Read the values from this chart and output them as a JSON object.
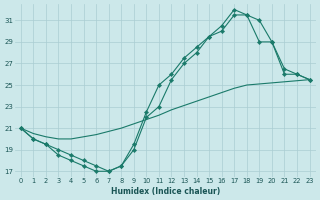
{
  "xlabel": "Humidex (Indice chaleur)",
  "background_color": "#cce8ea",
  "grid_color": "#aacdd2",
  "line_color": "#1a7a6a",
  "xlim": [
    -0.5,
    23.5
  ],
  "ylim": [
    16.5,
    32.5
  ],
  "xticks": [
    0,
    1,
    2,
    3,
    4,
    5,
    6,
    7,
    8,
    9,
    10,
    11,
    12,
    13,
    14,
    15,
    16,
    17,
    18,
    19,
    20,
    21,
    22,
    23
  ],
  "yticks": [
    17,
    19,
    21,
    23,
    25,
    27,
    29,
    31
  ],
  "line1_x": [
    0,
    1,
    2,
    3,
    4,
    5,
    6,
    7,
    8,
    9,
    10,
    11,
    12,
    13,
    14,
    15,
    16,
    17,
    18,
    19,
    20,
    21,
    22,
    23
  ],
  "line1_y": [
    21.0,
    20.0,
    19.5,
    19.0,
    18.5,
    18.0,
    17.5,
    17.0,
    17.5,
    19.5,
    22.5,
    25.0,
    26.0,
    27.5,
    28.5,
    29.5,
    30.5,
    32.0,
    31.5,
    29.0,
    29.0,
    26.0,
    26.0,
    25.5
  ],
  "line2_x": [
    0,
    1,
    2,
    3,
    4,
    5,
    6,
    7,
    8,
    9,
    10,
    11,
    12,
    13,
    14,
    15,
    16,
    17,
    18,
    19,
    20,
    21,
    22,
    23
  ],
  "line2_y": [
    21.0,
    20.0,
    19.5,
    18.5,
    18.0,
    17.5,
    17.0,
    17.0,
    17.5,
    19.0,
    22.0,
    23.0,
    25.5,
    27.0,
    28.0,
    29.5,
    30.0,
    31.5,
    31.5,
    31.0,
    29.0,
    26.5,
    26.0,
    25.5
  ],
  "line3_x": [
    0,
    1,
    2,
    3,
    4,
    5,
    6,
    7,
    8,
    9,
    10,
    11,
    12,
    13,
    14,
    15,
    16,
    17,
    18,
    19,
    20,
    21,
    22,
    23
  ],
  "line3_y": [
    21.0,
    20.5,
    20.2,
    20.0,
    20.0,
    20.2,
    20.4,
    20.7,
    21.0,
    21.4,
    21.8,
    22.2,
    22.7,
    23.1,
    23.5,
    23.9,
    24.3,
    24.7,
    25.0,
    25.1,
    25.2,
    25.3,
    25.4,
    25.5
  ]
}
